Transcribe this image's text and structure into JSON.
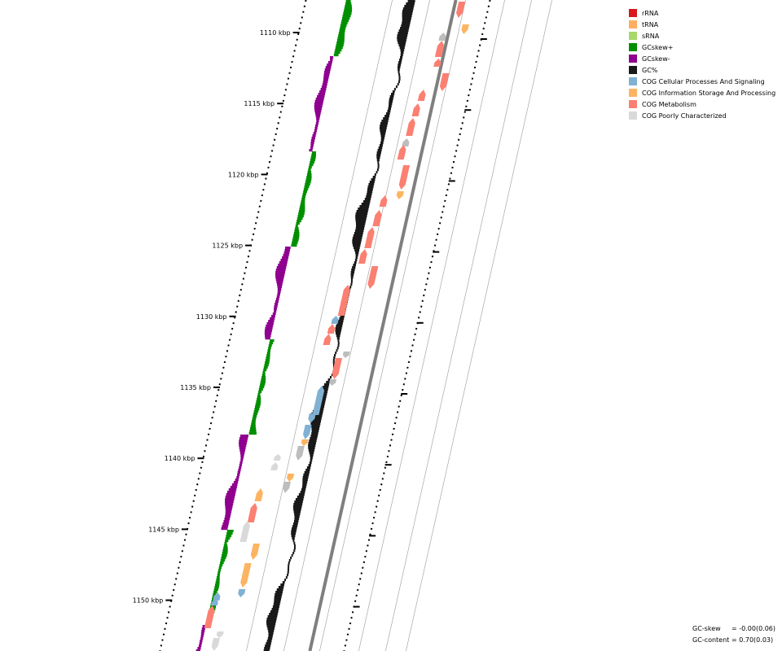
{
  "map": {
    "tick_labels": [
      "1110 kbp",
      "1115 kbp",
      "1120 kbp",
      "1125 kbp",
      "1130 kbp",
      "1135 kbp",
      "1140 kbp",
      "1145 kbp",
      "1150 kbp"
    ]
  },
  "legend": {
    "items": [
      {
        "label": "rRNA",
        "color": "#d7191c"
      },
      {
        "label": "tRNA",
        "color": "#fdae61"
      },
      {
        "label": "sRNA",
        "color": "#a6d96a"
      },
      {
        "label": "GCskew+",
        "color": "#008f00"
      },
      {
        "label": "GCskew-",
        "color": "#8f008f"
      },
      {
        "label": "GC%",
        "color": "#191919"
      },
      {
        "label": "COG Cellular Processes And Signaling",
        "color": "#80b1d3"
      },
      {
        "label": "COG Information Storage And Processing",
        "color": "#fdb462"
      },
      {
        "label": "COG Metabolism",
        "color": "#fb8072"
      },
      {
        "label": "COG Poorly Characterized",
        "color": "#d9d9d9"
      }
    ]
  },
  "stats": {
    "gc_skew_label": "GC-skew",
    "gc_skew_value": "= -0.00(0.06)",
    "gc_content_label": "GC-content",
    "gc_content_value": "= 0.70(0.03)"
  },
  "colors": {
    "gc_skew_plus": "#008f00",
    "gc_skew_minus": "#8f008f",
    "gc_percent": "#191919",
    "backbone": "#7f7f7f",
    "track_line": "#9a9a9a"
  }
}
